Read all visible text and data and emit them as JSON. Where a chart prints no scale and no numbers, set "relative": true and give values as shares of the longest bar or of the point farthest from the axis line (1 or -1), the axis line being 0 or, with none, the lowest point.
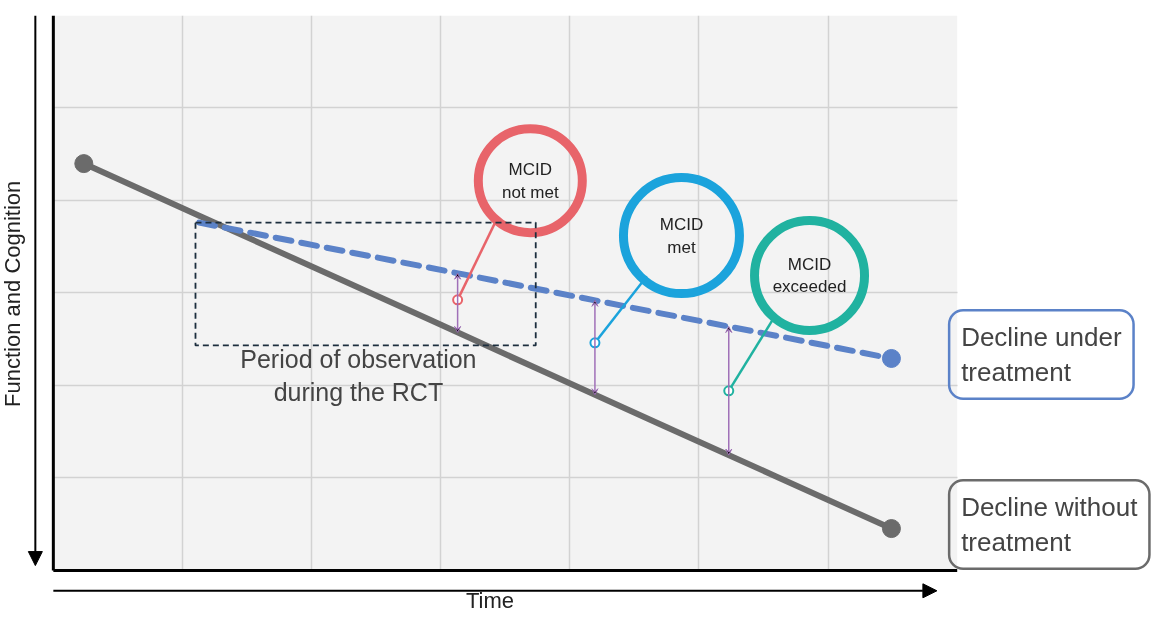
{
  "chart_data": {
    "type": "line",
    "relative": true,
    "xlabel": "Time",
    "ylabel": "Function and Cognition",
    "categories": [
      null,
      null,
      null,
      null,
      null,
      null,
      null,
      null
    ],
    "series": [
      {
        "name": "Decline without treatment",
        "color": "#6b6b6b",
        "line_style": "solid",
        "values": [
          1,
          0.872,
          0.744,
          0.616,
          0.487,
          0.359,
          0.231,
          0.103
        ]
      },
      {
        "name": "Decline under treatment",
        "color": "#5b82c8",
        "line_style": "dashed",
        "values": [
          null,
          0.855,
          0.799,
          0.744,
          0.688,
          0.632,
          0.577,
          0.521
        ]
      }
    ],
    "annotations": [
      "MCID not met",
      "MCID met",
      "MCID exceeded",
      "Period of observation during the RCT"
    ],
    "grid": true
  }
}
